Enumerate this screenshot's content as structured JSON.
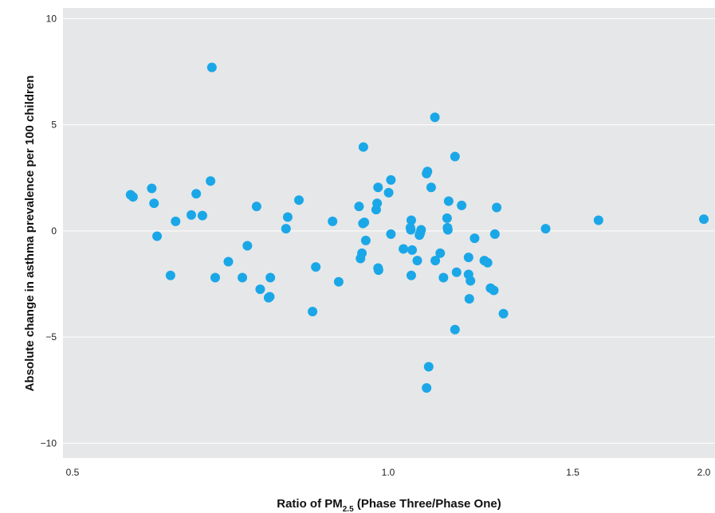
{
  "chart_data": {
    "type": "scatter",
    "xlabel_prefix": "Ratio of PM",
    "xlabel_subscript": "2.5",
    "xlabel_suffix": " (Phase Three/Phase One)",
    "ylabel": "Absolute change in asthma prevalence per 100 children",
    "xlim": [
      0.5,
      2.0
    ],
    "ylim": [
      -10.7,
      10.5
    ],
    "x_scale": "log",
    "x_ticks": [
      0.5,
      1.0,
      1.5,
      2.0
    ],
    "x_tick_labels": [
      "0.5",
      "1.0",
      "1.5",
      "2.0"
    ],
    "y_ticks": [
      -10,
      -5,
      0,
      5,
      10
    ],
    "y_tick_labels": [
      "−10",
      "−5",
      "0",
      "5",
      "10"
    ],
    "grid": true,
    "colors": {
      "point": "#1aa7e8",
      "panel": "#e6e7e8",
      "gridline": "#ffffff"
    },
    "series": [
      {
        "points": [
          [
            0.568,
            1.7
          ],
          [
            0.571,
            1.6
          ],
          [
            0.595,
            2.0
          ],
          [
            0.598,
            1.3
          ],
          [
            0.602,
            -0.25
          ],
          [
            0.62,
            -2.1
          ],
          [
            0.627,
            0.45
          ],
          [
            0.649,
            0.75
          ],
          [
            0.656,
            1.75
          ],
          [
            0.665,
            0.72
          ],
          [
            0.677,
            2.35
          ],
          [
            0.679,
            7.7
          ],
          [
            0.684,
            -2.2
          ],
          [
            0.704,
            -1.45
          ],
          [
            0.726,
            -2.2
          ],
          [
            0.734,
            -0.7
          ],
          [
            0.749,
            1.15
          ],
          [
            0.755,
            -2.75
          ],
          [
            0.769,
            -3.15
          ],
          [
            0.772,
            -2.2
          ],
          [
            0.771,
            -3.1
          ],
          [
            0.799,
            0.1
          ],
          [
            0.802,
            0.65
          ],
          [
            0.822,
            1.45
          ],
          [
            0.847,
            -3.8
          ],
          [
            0.853,
            -1.7
          ],
          [
            0.885,
            0.45
          ],
          [
            0.897,
            -2.4
          ],
          [
            0.938,
            1.15
          ],
          [
            0.941,
            -1.3
          ],
          [
            0.944,
            -1.05
          ],
          [
            0.946,
            0.35
          ],
          [
            0.947,
            3.95
          ],
          [
            0.949,
            0.4
          ],
          [
            0.952,
            -0.45
          ],
          [
            0.974,
            1.0
          ],
          [
            0.976,
            1.3
          ],
          [
            0.978,
            2.05
          ],
          [
            0.978,
            -1.75
          ],
          [
            0.979,
            -1.85
          ],
          [
            1.001,
            1.8
          ],
          [
            1.006,
            2.4
          ],
          [
            1.006,
            -0.15
          ],
          [
            1.034,
            -0.85
          ],
          [
            1.052,
            0.5
          ],
          [
            1.05,
            0.15
          ],
          [
            1.051,
            0.05
          ],
          [
            1.054,
            -0.9
          ],
          [
            1.052,
            -2.1
          ],
          [
            1.066,
            -1.4
          ],
          [
            1.071,
            -0.2
          ],
          [
            1.073,
            -0.1
          ],
          [
            1.075,
            0.05
          ],
          [
            1.088,
            2.7
          ],
          [
            1.09,
            2.8
          ],
          [
            1.093,
            -6.4
          ],
          [
            1.088,
            -7.4
          ],
          [
            1.099,
            2.05
          ],
          [
            1.108,
            5.35
          ],
          [
            1.109,
            -1.4
          ],
          [
            1.121,
            -1.05
          ],
          [
            1.129,
            -2.2
          ],
          [
            1.138,
            0.6
          ],
          [
            1.139,
            0.15
          ],
          [
            1.14,
            0.05
          ],
          [
            1.142,
            1.4
          ],
          [
            1.158,
            3.5
          ],
          [
            1.158,
            -4.65
          ],
          [
            1.162,
            -1.95
          ],
          [
            1.175,
            1.2
          ],
          [
            1.193,
            -1.25
          ],
          [
            1.193,
            -2.05
          ],
          [
            1.195,
            -3.2
          ],
          [
            1.198,
            -2.35
          ],
          [
            1.209,
            -0.35
          ],
          [
            1.235,
            -1.4
          ],
          [
            1.244,
            -1.5
          ],
          [
            1.252,
            -2.7
          ],
          [
            1.261,
            -2.8
          ],
          [
            1.264,
            -0.15
          ],
          [
            1.269,
            1.1
          ],
          [
            1.288,
            -3.9
          ],
          [
            1.413,
            0.1
          ],
          [
            1.587,
            0.5
          ],
          [
            2.0,
            0.55
          ]
        ]
      }
    ]
  }
}
